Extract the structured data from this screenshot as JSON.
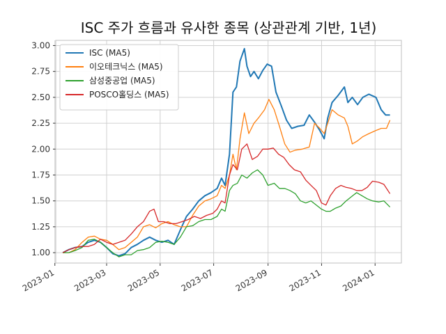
{
  "chart_data": {
    "type": "line",
    "title": "ISC 주가 흐름과 유사한 종목 (상관관계 기반, 1년)",
    "xlabel": "",
    "ylabel": "",
    "x_ticks": [
      "2023-01",
      "2023-03",
      "2023-05",
      "2023-07",
      "2023-09",
      "2023-11",
      "2024-01"
    ],
    "y_ticks": [
      "1.00",
      "1.25",
      "1.50",
      "1.75",
      "2.00",
      "2.25",
      "2.50",
      "2.75",
      "3.00"
    ],
    "xlim": [
      "2023-01-02",
      "2024-01-31"
    ],
    "ylim": [
      0.9,
      3.05
    ],
    "grid": true,
    "legend_position": "top-left",
    "series": [
      {
        "name": "ISC (MA5)",
        "color": "#1f77b4",
        "points": [
          [
            "2023-01-10",
            1.0
          ],
          [
            "2023-01-17",
            1.03
          ],
          [
            "2023-01-24",
            1.05
          ],
          [
            "2023-02-01",
            1.06
          ],
          [
            "2023-02-08",
            1.1
          ],
          [
            "2023-02-15",
            1.12
          ],
          [
            "2023-02-22",
            1.1
          ],
          [
            "2023-03-01",
            1.05
          ],
          [
            "2023-03-08",
            0.99
          ],
          [
            "2023-03-15",
            0.97
          ],
          [
            "2023-03-22",
            0.99
          ],
          [
            "2023-03-29",
            1.05
          ],
          [
            "2023-04-05",
            1.08
          ],
          [
            "2023-04-12",
            1.12
          ],
          [
            "2023-04-19",
            1.15
          ],
          [
            "2023-04-26",
            1.12
          ],
          [
            "2023-05-03",
            1.1
          ],
          [
            "2023-05-10",
            1.12
          ],
          [
            "2023-05-17",
            1.08
          ],
          [
            "2023-05-24",
            1.22
          ],
          [
            "2023-05-31",
            1.35
          ],
          [
            "2023-06-07",
            1.42
          ],
          [
            "2023-06-14",
            1.5
          ],
          [
            "2023-06-21",
            1.55
          ],
          [
            "2023-06-28",
            1.58
          ],
          [
            "2023-07-05",
            1.62
          ],
          [
            "2023-07-10",
            1.72
          ],
          [
            "2023-07-14",
            1.65
          ],
          [
            "2023-07-19",
            1.95
          ],
          [
            "2023-07-23",
            2.55
          ],
          [
            "2023-07-27",
            2.6
          ],
          [
            "2023-07-31",
            2.85
          ],
          [
            "2023-08-03",
            2.92
          ],
          [
            "2023-08-05",
            2.97
          ],
          [
            "2023-08-08",
            2.8
          ],
          [
            "2023-08-12",
            2.7
          ],
          [
            "2023-08-16",
            2.75
          ],
          [
            "2023-08-21",
            2.68
          ],
          [
            "2023-08-26",
            2.76
          ],
          [
            "2023-08-31",
            2.82
          ],
          [
            "2023-09-05",
            2.8
          ],
          [
            "2023-09-10",
            2.55
          ],
          [
            "2023-09-16",
            2.42
          ],
          [
            "2023-09-22",
            2.28
          ],
          [
            "2023-09-28",
            2.2
          ],
          [
            "2023-10-05",
            2.22
          ],
          [
            "2023-10-12",
            2.23
          ],
          [
            "2023-10-18",
            2.33
          ],
          [
            "2023-10-24",
            2.26
          ],
          [
            "2023-10-30",
            2.18
          ],
          [
            "2023-11-04",
            2.1
          ],
          [
            "2023-11-08",
            2.3
          ],
          [
            "2023-11-13",
            2.45
          ],
          [
            "2023-11-20",
            2.52
          ],
          [
            "2023-11-27",
            2.6
          ],
          [
            "2023-12-01",
            2.45
          ],
          [
            "2023-12-06",
            2.5
          ],
          [
            "2023-12-12",
            2.43
          ],
          [
            "2023-12-18",
            2.5
          ],
          [
            "2023-12-25",
            2.53
          ],
          [
            "2024-01-02",
            2.5
          ],
          [
            "2024-01-08",
            2.38
          ],
          [
            "2024-01-13",
            2.33
          ],
          [
            "2024-01-18",
            2.33
          ]
        ]
      },
      {
        "name": "이오테크닉스 (MA5)",
        "color": "#ff7f0e",
        "points": [
          [
            "2023-01-10",
            1.0
          ],
          [
            "2023-01-17",
            1.0
          ],
          [
            "2023-01-24",
            1.03
          ],
          [
            "2023-02-01",
            1.1
          ],
          [
            "2023-02-08",
            1.15
          ],
          [
            "2023-02-15",
            1.16
          ],
          [
            "2023-02-22",
            1.13
          ],
          [
            "2023-03-01",
            1.12
          ],
          [
            "2023-03-08",
            1.08
          ],
          [
            "2023-03-15",
            1.03
          ],
          [
            "2023-03-22",
            1.05
          ],
          [
            "2023-03-29",
            1.1
          ],
          [
            "2023-04-05",
            1.15
          ],
          [
            "2023-04-12",
            1.25
          ],
          [
            "2023-04-19",
            1.27
          ],
          [
            "2023-04-26",
            1.24
          ],
          [
            "2023-05-03",
            1.28
          ],
          [
            "2023-05-10",
            1.3
          ],
          [
            "2023-05-17",
            1.27
          ],
          [
            "2023-05-24",
            1.25
          ],
          [
            "2023-05-31",
            1.25
          ],
          [
            "2023-06-07",
            1.36
          ],
          [
            "2023-06-14",
            1.45
          ],
          [
            "2023-06-21",
            1.5
          ],
          [
            "2023-06-28",
            1.52
          ],
          [
            "2023-07-05",
            1.55
          ],
          [
            "2023-07-10",
            1.65
          ],
          [
            "2023-07-14",
            1.62
          ],
          [
            "2023-07-19",
            1.75
          ],
          [
            "2023-07-23",
            1.95
          ],
          [
            "2023-07-27",
            1.8
          ],
          [
            "2023-07-31",
            2.1
          ],
          [
            "2023-08-05",
            2.35
          ],
          [
            "2023-08-10",
            2.15
          ],
          [
            "2023-08-16",
            2.25
          ],
          [
            "2023-08-21",
            2.3
          ],
          [
            "2023-08-28",
            2.38
          ],
          [
            "2023-09-02",
            2.48
          ],
          [
            "2023-09-08",
            2.38
          ],
          [
            "2023-09-14",
            2.22
          ],
          [
            "2023-09-20",
            2.05
          ],
          [
            "2023-09-26",
            1.97
          ],
          [
            "2023-10-02",
            1.99
          ],
          [
            "2023-10-10",
            2.0
          ],
          [
            "2023-10-18",
            2.02
          ],
          [
            "2023-10-24",
            2.25
          ],
          [
            "2023-10-30",
            2.2
          ],
          [
            "2023-11-04",
            2.15
          ],
          [
            "2023-11-08",
            2.25
          ],
          [
            "2023-11-13",
            2.38
          ],
          [
            "2023-11-20",
            2.33
          ],
          [
            "2023-11-27",
            2.3
          ],
          [
            "2023-12-01",
            2.22
          ],
          [
            "2023-12-06",
            2.05
          ],
          [
            "2023-12-12",
            2.08
          ],
          [
            "2023-12-18",
            2.12
          ],
          [
            "2023-12-25",
            2.15
          ],
          [
            "2024-01-02",
            2.18
          ],
          [
            "2024-01-08",
            2.2
          ],
          [
            "2024-01-14",
            2.2
          ],
          [
            "2024-01-18",
            2.28
          ]
        ]
      },
      {
        "name": "삼성중공업 (MA5)",
        "color": "#2ca02c",
        "points": [
          [
            "2023-01-10",
            1.0
          ],
          [
            "2023-01-17",
            1.0
          ],
          [
            "2023-01-24",
            1.02
          ],
          [
            "2023-02-01",
            1.05
          ],
          [
            "2023-02-08",
            1.12
          ],
          [
            "2023-02-15",
            1.13
          ],
          [
            "2023-02-22",
            1.1
          ],
          [
            "2023-03-01",
            1.05
          ],
          [
            "2023-03-08",
            1.0
          ],
          [
            "2023-03-15",
            0.96
          ],
          [
            "2023-03-22",
            0.98
          ],
          [
            "2023-03-29",
            0.98
          ],
          [
            "2023-04-05",
            1.02
          ],
          [
            "2023-04-12",
            1.03
          ],
          [
            "2023-04-19",
            1.05
          ],
          [
            "2023-04-26",
            1.1
          ],
          [
            "2023-05-03",
            1.11
          ],
          [
            "2023-05-10",
            1.1
          ],
          [
            "2023-05-17",
            1.08
          ],
          [
            "2023-05-24",
            1.15
          ],
          [
            "2023-05-31",
            1.25
          ],
          [
            "2023-06-07",
            1.26
          ],
          [
            "2023-06-14",
            1.3
          ],
          [
            "2023-06-21",
            1.32
          ],
          [
            "2023-06-28",
            1.32
          ],
          [
            "2023-07-05",
            1.35
          ],
          [
            "2023-07-10",
            1.42
          ],
          [
            "2023-07-14",
            1.4
          ],
          [
            "2023-07-19",
            1.6
          ],
          [
            "2023-07-23",
            1.65
          ],
          [
            "2023-07-28",
            1.67
          ],
          [
            "2023-08-02",
            1.75
          ],
          [
            "2023-08-08",
            1.72
          ],
          [
            "2023-08-14",
            1.77
          ],
          [
            "2023-08-20",
            1.8
          ],
          [
            "2023-08-26",
            1.75
          ],
          [
            "2023-09-01",
            1.65
          ],
          [
            "2023-09-08",
            1.67
          ],
          [
            "2023-09-14",
            1.62
          ],
          [
            "2023-09-20",
            1.62
          ],
          [
            "2023-09-26",
            1.6
          ],
          [
            "2023-10-02",
            1.57
          ],
          [
            "2023-10-08",
            1.5
          ],
          [
            "2023-10-14",
            1.48
          ],
          [
            "2023-10-20",
            1.5
          ],
          [
            "2023-10-26",
            1.46
          ],
          [
            "2023-11-01",
            1.42
          ],
          [
            "2023-11-06",
            1.4
          ],
          [
            "2023-11-11",
            1.4
          ],
          [
            "2023-11-17",
            1.43
          ],
          [
            "2023-11-23",
            1.45
          ],
          [
            "2023-11-29",
            1.5
          ],
          [
            "2023-12-05",
            1.54
          ],
          [
            "2023-12-11",
            1.58
          ],
          [
            "2023-12-17",
            1.55
          ],
          [
            "2023-12-23",
            1.52
          ],
          [
            "2023-12-29",
            1.5
          ],
          [
            "2024-01-05",
            1.49
          ],
          [
            "2024-01-11",
            1.5
          ],
          [
            "2024-01-18",
            1.44
          ]
        ]
      },
      {
        "name": "POSCO홀딩스 (MA5)",
        "color": "#d62728",
        "points": [
          [
            "2023-01-10",
            1.0
          ],
          [
            "2023-01-17",
            1.03
          ],
          [
            "2023-01-24",
            1.05
          ],
          [
            "2023-02-01",
            1.06
          ],
          [
            "2023-02-08",
            1.06
          ],
          [
            "2023-02-15",
            1.08
          ],
          [
            "2023-02-22",
            1.13
          ],
          [
            "2023-03-01",
            1.1
          ],
          [
            "2023-03-08",
            1.08
          ],
          [
            "2023-03-15",
            1.1
          ],
          [
            "2023-03-22",
            1.12
          ],
          [
            "2023-03-29",
            1.18
          ],
          [
            "2023-04-05",
            1.25
          ],
          [
            "2023-04-12",
            1.3
          ],
          [
            "2023-04-19",
            1.4
          ],
          [
            "2023-04-24",
            1.42
          ],
          [
            "2023-04-29",
            1.3
          ],
          [
            "2023-05-05",
            1.3
          ],
          [
            "2023-05-12",
            1.28
          ],
          [
            "2023-05-19",
            1.28
          ],
          [
            "2023-05-26",
            1.3
          ],
          [
            "2023-06-02",
            1.32
          ],
          [
            "2023-06-09",
            1.35
          ],
          [
            "2023-06-16",
            1.33
          ],
          [
            "2023-06-23",
            1.36
          ],
          [
            "2023-06-30",
            1.38
          ],
          [
            "2023-07-05",
            1.42
          ],
          [
            "2023-07-10",
            1.5
          ],
          [
            "2023-07-14",
            1.48
          ],
          [
            "2023-07-19",
            1.75
          ],
          [
            "2023-07-23",
            1.85
          ],
          [
            "2023-07-28",
            1.8
          ],
          [
            "2023-08-02",
            2.0
          ],
          [
            "2023-08-08",
            2.05
          ],
          [
            "2023-08-14",
            1.9
          ],
          [
            "2023-08-20",
            1.93
          ],
          [
            "2023-08-26",
            2.0
          ],
          [
            "2023-09-01",
            2.0
          ],
          [
            "2023-09-07",
            2.01
          ],
          [
            "2023-09-13",
            1.95
          ],
          [
            "2023-09-19",
            1.92
          ],
          [
            "2023-09-25",
            1.85
          ],
          [
            "2023-10-01",
            1.8
          ],
          [
            "2023-10-08",
            1.78
          ],
          [
            "2023-10-14",
            1.7
          ],
          [
            "2023-10-20",
            1.65
          ],
          [
            "2023-10-26",
            1.6
          ],
          [
            "2023-11-01",
            1.48
          ],
          [
            "2023-11-06",
            1.46
          ],
          [
            "2023-11-11",
            1.55
          ],
          [
            "2023-11-17",
            1.62
          ],
          [
            "2023-11-23",
            1.65
          ],
          [
            "2023-11-29",
            1.63
          ],
          [
            "2023-12-05",
            1.62
          ],
          [
            "2023-12-11",
            1.6
          ],
          [
            "2023-12-17",
            1.6
          ],
          [
            "2023-12-23",
            1.63
          ],
          [
            "2023-12-29",
            1.69
          ],
          [
            "2024-01-05",
            1.68
          ],
          [
            "2024-01-11",
            1.66
          ],
          [
            "2024-01-18",
            1.57
          ]
        ]
      }
    ]
  }
}
